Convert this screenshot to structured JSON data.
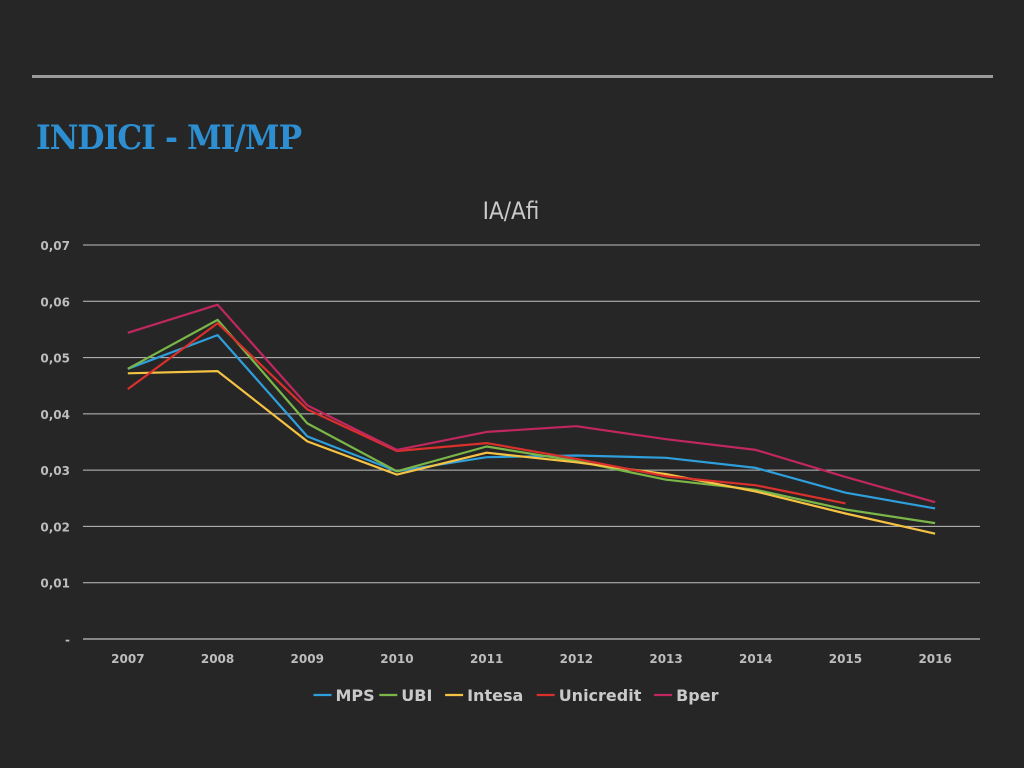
{
  "slide": {
    "title": "INDICI - MI/MP"
  },
  "colors": {
    "background": "#262626",
    "title": "#2d8fd1",
    "grid": "#bfbfbf",
    "text": "#c9c9c9"
  },
  "chart_data": {
    "type": "line",
    "title": "IA/Afi",
    "xlabel": "",
    "ylabel": "",
    "categories": [
      "2007",
      "2008",
      "2009",
      "2010",
      "2011",
      "2012",
      "2013",
      "2014",
      "2015",
      "2016"
    ],
    "y_ticks": [
      "-",
      "0,01",
      "0,02",
      "0,03",
      "0,04",
      "0,05",
      "0,06",
      "0,07"
    ],
    "ylim": [
      0,
      0.07
    ],
    "grid": true,
    "legend_position": "bottom",
    "series": [
      {
        "name": "MPS",
        "color": "#2f9fdc",
        "values": [
          0.048,
          0.054,
          0.036,
          0.0298,
          0.0323,
          0.0326,
          0.0322,
          0.0304,
          0.026,
          0.0232
        ]
      },
      {
        "name": "UBI",
        "color": "#7ab648",
        "values": [
          0.048,
          0.0567,
          0.0383,
          0.0298,
          0.0342,
          0.0316,
          0.0283,
          0.0265,
          0.023,
          0.0206
        ]
      },
      {
        "name": "Intesa",
        "color": "#f5c243",
        "values": [
          0.0472,
          0.0476,
          0.0351,
          0.0292,
          0.0331,
          0.0314,
          0.0293,
          0.0262,
          0.0223,
          0.0187
        ]
      },
      {
        "name": "Unicredit",
        "color": "#d9302c",
        "values": [
          0.0444,
          0.0561,
          0.0408,
          0.0334,
          0.0348,
          0.032,
          0.0289,
          0.0273,
          0.0241,
          null
        ]
      },
      {
        "name": "Bper",
        "color": "#c0275f",
        "values": [
          0.0544,
          0.0594,
          0.0415,
          0.0336,
          0.0368,
          0.0378,
          0.0355,
          0.0336,
          0.0288,
          0.0243
        ]
      }
    ]
  }
}
